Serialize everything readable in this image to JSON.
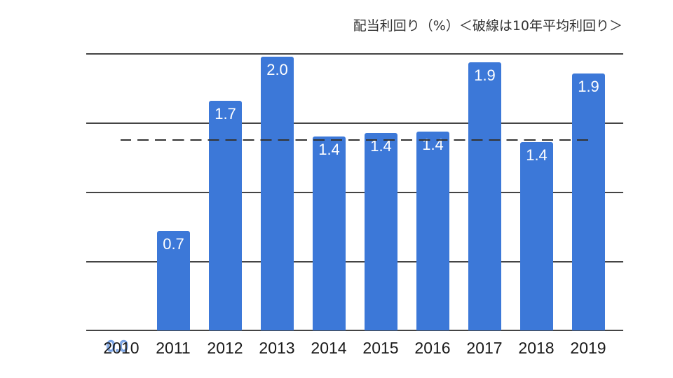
{
  "title": "配当利回り（%）＜破線は10年平均利回り＞",
  "colors": {
    "bar": "#3c78d8",
    "grid": "#444444",
    "average_line": "#333333"
  },
  "chart_data": {
    "type": "bar",
    "title": "配当利回り（%）＜破線は10年平均利回り＞",
    "xlabel": "",
    "ylabel": "",
    "categories": [
      "2010",
      "2011",
      "2012",
      "2013",
      "2014",
      "2015",
      "2016",
      "2017",
      "2018",
      "2019"
    ],
    "values": [
      0.0,
      0.7,
      1.7,
      2.0,
      1.4,
      1.4,
      1.4,
      1.9,
      1.4,
      1.9
    ],
    "data_labels": [
      "0.0",
      "0.7",
      "1.7",
      "2.0",
      "1.4",
      "1.4",
      "1.4",
      "1.9",
      "1.4",
      "1.9"
    ],
    "ylim": [
      0,
      2.0
    ],
    "gridlines": [
      0,
      0.5,
      1.0,
      1.5,
      2.0
    ],
    "y_tick_labels_visible": false,
    "grid": true,
    "legend": "none",
    "annotations": [
      {
        "type": "dashed-horizontal-line",
        "label": "10年平均利回り",
        "value": 1.38
      }
    ]
  },
  "bars": [
    {
      "year": "2010",
      "label": "0.0",
      "value": 0.0
    },
    {
      "year": "2011",
      "label": "0.7",
      "value": 0.72
    },
    {
      "year": "2012",
      "label": "1.7",
      "value": 1.66
    },
    {
      "year": "2013",
      "label": "2.0",
      "value": 1.98
    },
    {
      "year": "2014",
      "label": "1.4",
      "value": 1.4
    },
    {
      "year": "2015",
      "label": "1.4",
      "value": 1.43
    },
    {
      "year": "2016",
      "label": "1.4",
      "value": 1.44
    },
    {
      "year": "2017",
      "label": "1.9",
      "value": 1.94
    },
    {
      "year": "2018",
      "label": "1.4",
      "value": 1.36
    },
    {
      "year": "2019",
      "label": "1.9",
      "value": 1.86
    }
  ]
}
